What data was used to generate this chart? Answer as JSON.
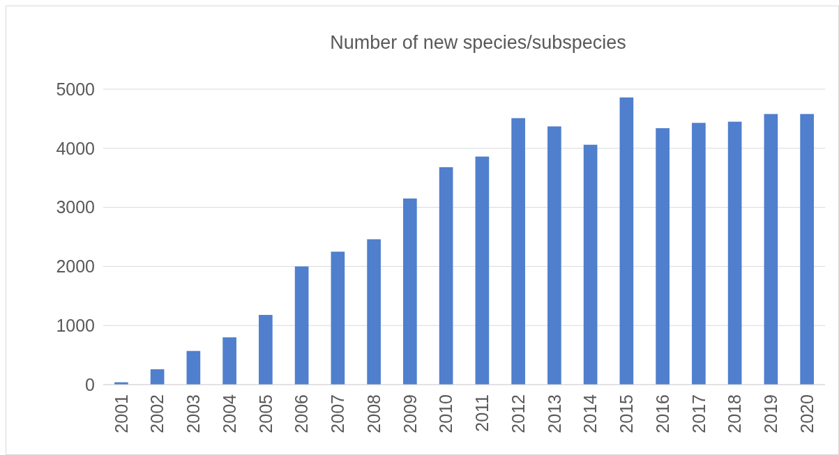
{
  "chart_data": {
    "type": "bar",
    "title": "Number of new species/subspecies",
    "categories": [
      "2001",
      "2002",
      "2003",
      "2004",
      "2005",
      "2006",
      "2007",
      "2008",
      "2009",
      "2010",
      "2011",
      "2012",
      "2013",
      "2014",
      "2015",
      "2016",
      "2017",
      "2018",
      "2019",
      "2020"
    ],
    "values": [
      40,
      260,
      570,
      800,
      1180,
      2000,
      2250,
      2460,
      3150,
      3680,
      3860,
      4510,
      4370,
      4060,
      4860,
      4340,
      4430,
      4450,
      4580,
      4580
    ],
    "color": "#4f7fcd",
    "ylim": [
      0,
      5000
    ],
    "yticks": [
      0,
      1000,
      2000,
      3000,
      4000,
      5000
    ],
    "grid": "y"
  }
}
